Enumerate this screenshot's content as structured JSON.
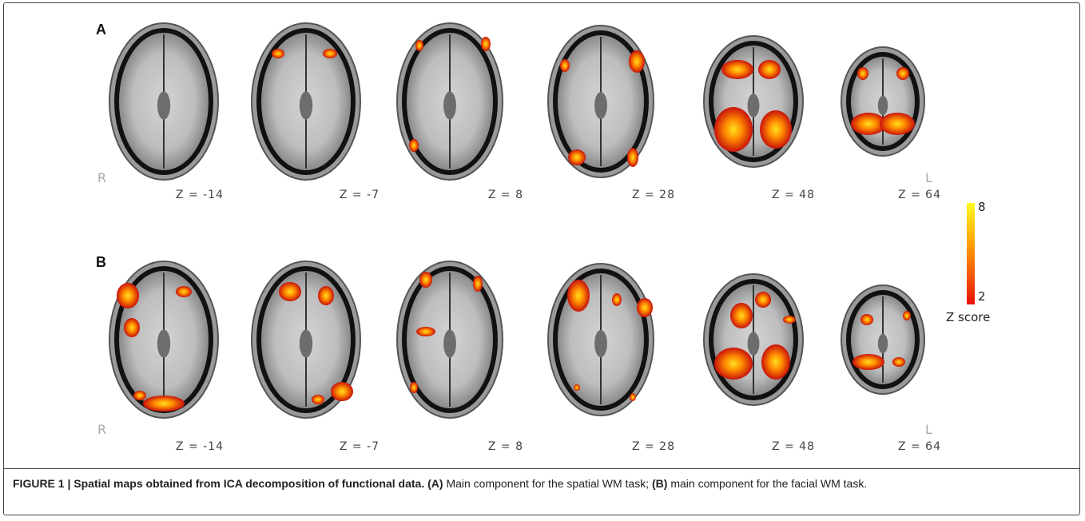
{
  "panels": [
    {
      "label": "A",
      "side_left": "R",
      "side_right": "L",
      "slices": [
        "Z = -14",
        "Z = -7",
        "Z = 8",
        "Z = 28",
        "Z = 48",
        "Z = 64"
      ]
    },
    {
      "label": "B",
      "side_left": "R",
      "side_right": "L",
      "slices": [
        "Z = -14",
        "Z = -7",
        "Z = 8",
        "Z = 28",
        "Z = 48",
        "Z = 64"
      ]
    }
  ],
  "colorbar": {
    "max": 8,
    "min": 2,
    "label": "Z score"
  },
  "caption": {
    "title": "FIGURE 1 | Spatial maps obtained from ICA decomposition of functional data.",
    "a_label": "(A)",
    "a_text": "Main component for the spatial WM task;",
    "b_label": "(B)",
    "b_text": "main component for the facial WM task."
  }
}
